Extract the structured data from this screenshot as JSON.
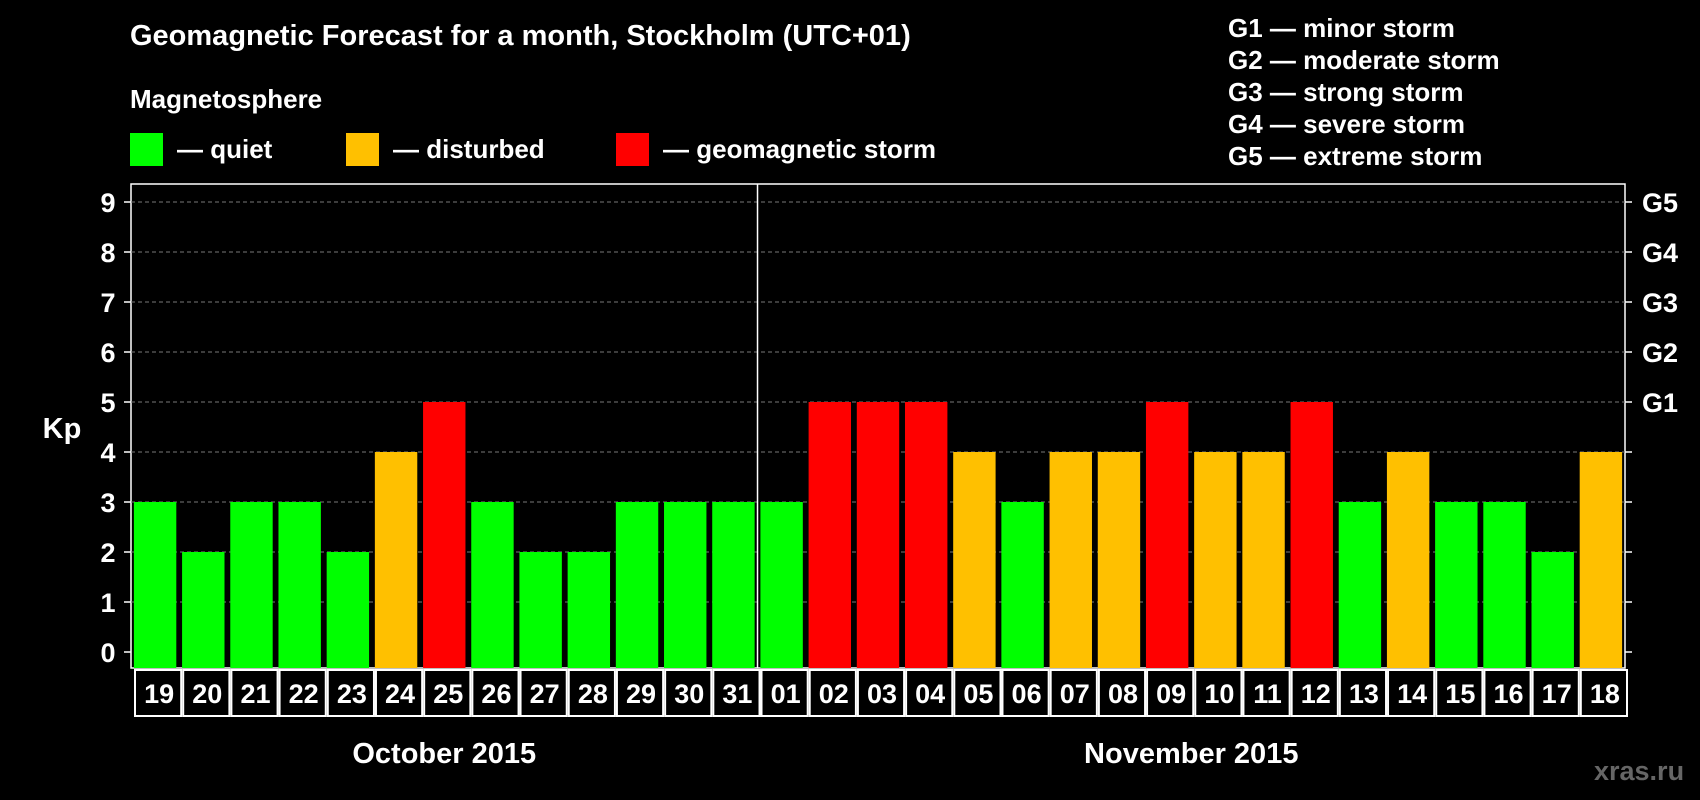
{
  "chart_data": {
    "type": "bar",
    "title": "Geomagnetic Forecast for a month, Stockholm (UTC+01)",
    "subtitle": "Magnetosphere",
    "ylabel": "Kp",
    "ylim": [
      0,
      9
    ],
    "yticks": [
      "0",
      "1",
      "2",
      "3",
      "4",
      "5",
      "6",
      "7",
      "8",
      "9"
    ],
    "grid": true,
    "legend": [
      {
        "label": "— quiet",
        "color": "#00ff00"
      },
      {
        "label": "— disturbed",
        "color": "#ffc000"
      },
      {
        "label": "— geomagnetic storm",
        "color": "#ff0000"
      }
    ],
    "g_axis": [
      {
        "label": "G1",
        "kp": 5
      },
      {
        "label": "G2",
        "kp": 6
      },
      {
        "label": "G3",
        "kp": 7
      },
      {
        "label": "G4",
        "kp": 8
      },
      {
        "label": "G5",
        "kp": 9
      }
    ],
    "g_legend": [
      "G1 — minor storm",
      "G2 — moderate storm",
      "G3 — strong storm",
      "G4 — severe storm",
      "G5 — extreme storm"
    ],
    "months": [
      {
        "label": "October 2015",
        "days": 13
      },
      {
        "label": "November 2015",
        "days": 18
      }
    ],
    "categories": [
      "19",
      "20",
      "21",
      "22",
      "23",
      "24",
      "25",
      "26",
      "27",
      "28",
      "29",
      "30",
      "31",
      "01",
      "02",
      "03",
      "04",
      "05",
      "06",
      "07",
      "08",
      "09",
      "10",
      "11",
      "12",
      "13",
      "14",
      "15",
      "16",
      "17",
      "18"
    ],
    "values": [
      3,
      2,
      3,
      3,
      2,
      4,
      5,
      3,
      2,
      2,
      3,
      3,
      3,
      3,
      5,
      5,
      5,
      4,
      3,
      4,
      4,
      5,
      4,
      4,
      5,
      3,
      4,
      3,
      3,
      2,
      4
    ],
    "levels": [
      "quiet",
      "quiet",
      "quiet",
      "quiet",
      "quiet",
      "disturbed",
      "storm",
      "quiet",
      "quiet",
      "quiet",
      "quiet",
      "quiet",
      "quiet",
      "quiet",
      "storm",
      "storm",
      "storm",
      "disturbed",
      "quiet",
      "disturbed",
      "disturbed",
      "storm",
      "disturbed",
      "disturbed",
      "storm",
      "quiet",
      "disturbed",
      "quiet",
      "quiet",
      "quiet",
      "disturbed"
    ],
    "colors": {
      "quiet": "#00ff00",
      "disturbed": "#ffc000",
      "storm": "#ff0000"
    }
  },
  "watermark": "xras.ru"
}
